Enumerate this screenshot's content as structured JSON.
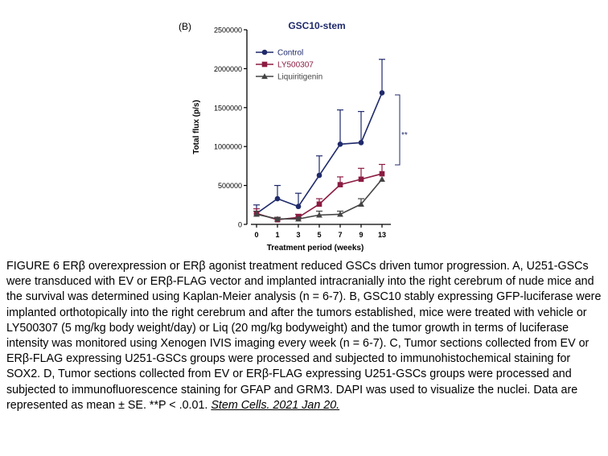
{
  "panel_label": "(B)",
  "chart_data": {
    "type": "line",
    "title": "GSC10-stem",
    "xlabel": "Treatment period  (weeks)",
    "ylabel": "Total flux (p/s)",
    "categories": [
      "0",
      "1",
      "3",
      "5",
      "7",
      "9",
      "13"
    ],
    "ylim": [
      0,
      2500000
    ],
    "yticks": [
      {
        "value": 0,
        "label": "0"
      },
      {
        "value": 500000,
        "label": "500000"
      },
      {
        "value": 1000000,
        "label": "1000000"
      },
      {
        "value": 1500000,
        "label": "1500000"
      },
      {
        "value": 2000000,
        "label": "2000000"
      },
      {
        "value": 2500000,
        "label": "2500000"
      }
    ],
    "legend_position": "top-left",
    "series": [
      {
        "name": "Control",
        "color": "#1f2a6b",
        "marker": "circle",
        "values": [
          140000,
          330000,
          230000,
          630000,
          1030000,
          1050000,
          1690000
        ],
        "errors": [
          110000,
          170000,
          170000,
          250000,
          440000,
          400000,
          430000
        ]
      },
      {
        "name": "LY500307",
        "color": "#8b1c42",
        "marker": "square",
        "values": [
          140000,
          60000,
          90000,
          260000,
          510000,
          580000,
          650000
        ],
        "errors": [
          60000,
          30000,
          40000,
          70000,
          100000,
          140000,
          120000
        ]
      },
      {
        "name": "Liquiritigenin",
        "color": "#444444",
        "marker": "triangle",
        "values": [
          130000,
          70000,
          70000,
          120000,
          130000,
          260000,
          580000
        ],
        "errors": [
          40000,
          20000,
          20000,
          50000,
          40000,
          70000,
          0
        ]
      }
    ],
    "annotations": [
      {
        "text": "**"
      }
    ]
  },
  "caption": {
    "text": "FIGURE 6 ERβ overexpression or ERβ agonist treatment reduced GSCs driven tumor progression. A, U251-GSCs were transduced with EV or ERβ-FLAG vector and implanted intracranially into the right cerebrum of nude mice and the survival was determined using Kaplan-Meier analysis (n = 6-7). B, GSC10 stably expressing GFP-luciferase were implanted orthotopically into the right cerebrum and after the tumors established, mice were treated with vehicle or LY500307 (5 mg/kg body weight/day) or Liq (20 mg/kg bodyweight) and the tumor growth in terms of luciferase intensity was monitored using Xenogen IVIS imaging every week (n = 6-7). C, Tumor sections collected from EV or ERβ-FLAG expressing U251-GSCs groups were processed and subjected to immunohistochemical staining for SOX2. D, Tumor sections collected from EV or ERβ-FLAG expressing U251-GSCs groups were processed and subjected to immunofluorescence staining for GFAP and GRM3. DAPI was used to visualize the nuclei. Data are represented as mean ± SE. **P < .0.01.",
    "citation": "Stem Cells. 2021 Jan 20."
  }
}
